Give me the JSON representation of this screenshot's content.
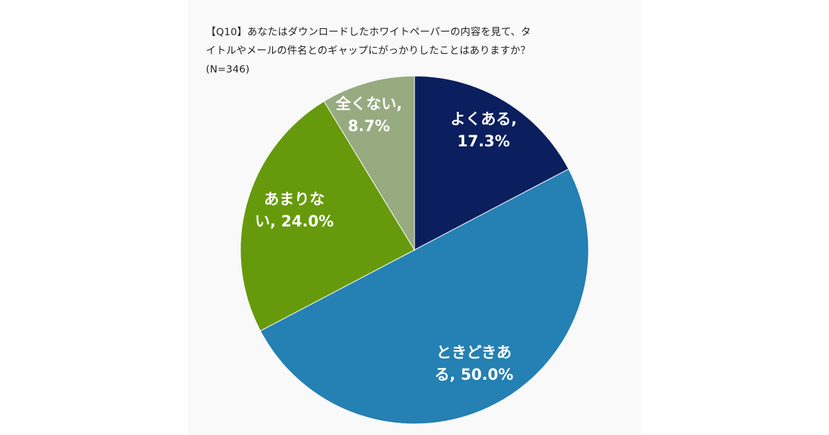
{
  "question": {
    "line1": "【Q10】あなたはダウンロードしたホワイトペーパーの内容を見て、タ",
    "line2": "イトルやメールの件名とのギャップにがっかりしたことはありますか？",
    "line3": "(N=346)"
  },
  "chart_data": {
    "type": "pie",
    "title": "【Q10】あなたはダウンロードしたホワイトペーパーの内容を見て、タイトルやメールの件名とのギャップにがっかりしたことはありますか？",
    "subtitle": "(N=346)",
    "start_angle_deg": 0,
    "direction": "clockwise",
    "legend": "none",
    "slices": [
      {
        "label": "よくある",
        "value": 17.3,
        "color": "#0b1f5e",
        "label_lines": [
          "よくある,",
          "17.3%"
        ]
      },
      {
        "label": "ときどきある",
        "value": 50.0,
        "color": "#2580b3",
        "label_lines": [
          "ときどきあ",
          "る, 50.0%"
        ]
      },
      {
        "label": "あまりない",
        "value": 24.0,
        "color": "#669a0c",
        "label_lines": [
          "あまりな",
          "い, 24.0%"
        ]
      },
      {
        "label": "全くない",
        "value": 8.7,
        "color": "#97aa80",
        "label_lines": [
          "全くない,",
          "8.7%"
        ]
      }
    ]
  }
}
